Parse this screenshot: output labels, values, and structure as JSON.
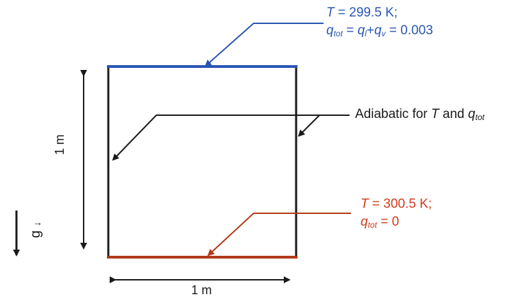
{
  "top_bc": {
    "line1": {
      "var": "T",
      "text": " = 299.5 K;"
    },
    "line2": {
      "q": "q",
      "tot": "tot",
      "eq": " = ",
      "ql": "q",
      "l": "l",
      "plus": "+",
      "qv": "q",
      "v": "v",
      "val": " = 0.003"
    }
  },
  "side_bc": {
    "prefix": "Adiabatic for ",
    "T": "T",
    "and": " and ",
    "q": "q",
    "tot": "tot"
  },
  "bottom_bc": {
    "line1": {
      "var": "T",
      "text": " = 300.5 K;"
    },
    "line2": {
      "q": "q",
      "tot": "tot",
      "val": " = 0"
    }
  },
  "height_label": "1 m",
  "width_label": "1 m",
  "gravity_label": "g",
  "gravity_arrow": "→",
  "colors": {
    "top": "#2a56b4",
    "bottom": "#b23a1a",
    "walls": "#1a1a1a"
  }
}
